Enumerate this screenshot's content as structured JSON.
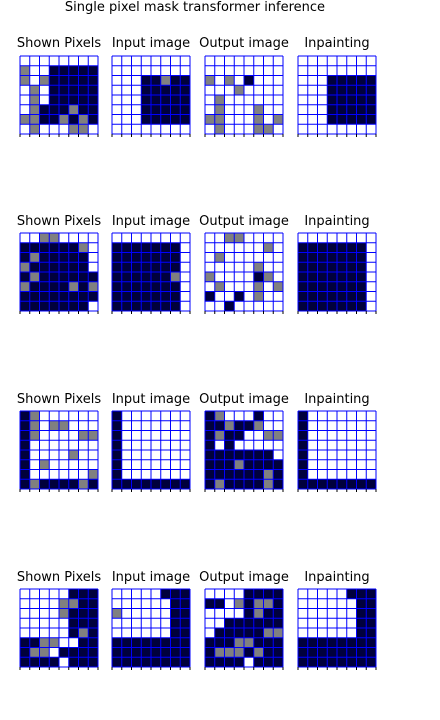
{
  "title": "Single pixel mask transformer inference",
  "panel_titles": [
    "Shown Pixels",
    "Input image",
    "Output image",
    "Inpainting"
  ],
  "colors": {
    "0": "#ffffff",
    "1": "#808080",
    "2": "#00003c",
    "grid": "#0000ff",
    "tick": "#000000"
  },
  "rows": [
    {
      "shown": [
        "00000000",
        "10022222",
        "10122222",
        "01022222",
        "01022222",
        "01222122",
        "11221212",
        "01000110"
      ],
      "input": [
        "00000000",
        "00000000",
        "00022122",
        "00022222",
        "00022222",
        "00022222",
        "00022222",
        "00000000"
      ],
      "output": [
        "00000000",
        "00000000",
        "10102000",
        "00010000",
        "01000000",
        "01000100",
        "11000101",
        "01000110"
      ],
      "inpaint": [
        "00000000",
        "00000000",
        "00022222",
        "00022222",
        "00022222",
        "00022222",
        "00022222",
        "00000000"
      ]
    },
    {
      "shown": [
        "00110000",
        "22222210",
        "21222220",
        "12222220",
        "21222222",
        "12222121",
        "22222222",
        "22222220"
      ],
      "input": [
        "00000000",
        "22222220",
        "22222220",
        "22222220",
        "22222210",
        "22222220",
        "22222220",
        "22222220"
      ],
      "output": [
        "00110000",
        "00000010",
        "01000000",
        "00000100",
        "10000210",
        "01000101",
        "20020100",
        "00200000"
      ],
      "inpaint": [
        "00000000",
        "22222220",
        "22222220",
        "22222220",
        "22222220",
        "22222220",
        "22222220",
        "22222220"
      ]
    },
    {
      "shown": [
        "21000000",
        "21011000",
        "21000011",
        "20000000",
        "20000100",
        "20100000",
        "20000001",
        "21222212"
      ],
      "input": [
        "20000000",
        "20000000",
        "20000000",
        "20000000",
        "20000000",
        "20000000",
        "20000000",
        "22222222"
      ],
      "output": [
        "21000200",
        "22122100",
        "21220011",
        "20200000",
        "22222220",
        "22212222",
        "22222212",
        "21222212"
      ],
      "inpaint": [
        "20000000",
        "20000000",
        "20000000",
        "20000000",
        "20000000",
        "20000000",
        "20000000",
        "22222222"
      ]
    },
    {
      "shown": [
        "00000222",
        "00001122",
        "00001222",
        "00000222",
        "00000212",
        "22110022",
        "21102222",
        "22220222"
      ],
      "input": [
        "00000222",
        "00000022",
        "10000022",
        "00000022",
        "00000022",
        "22222222",
        "22222222",
        "22222222"
      ],
      "output": [
        "00002222",
        "22012112",
        "00002122",
        "00222222",
        "02222211",
        "22211222",
        "21112122",
        "22220222"
      ],
      "inpaint": [
        "00000222",
        "00000022",
        "00000022",
        "00000022",
        "00000022",
        "22222222",
        "22222222",
        "22222222"
      ]
    }
  ]
}
